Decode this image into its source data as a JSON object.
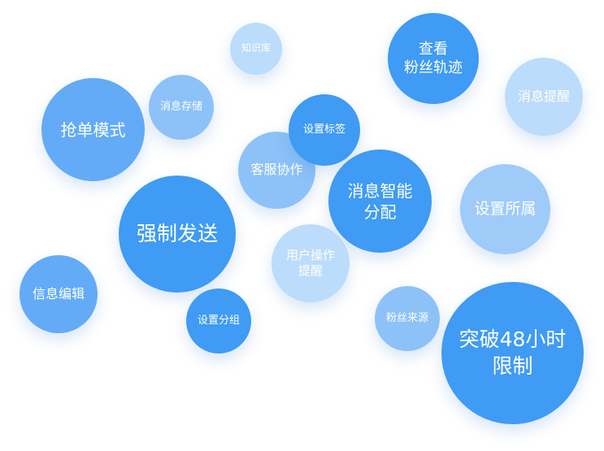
{
  "bubbles": {
    "knowledge_base": "知识库",
    "view_fan_trail": [
      "查看",
      "粉丝轨迹"
    ],
    "message_reminder": "消息提醒",
    "grab_order_mode": "抢单模式",
    "message_storage": "消息存储",
    "set_tag": "设置标签",
    "service_collab": "客服协作",
    "smart_dispatch": [
      "消息智能",
      "分配"
    ],
    "set_belonging": "设置所属",
    "force_send": "强制发送",
    "user_action_remind": [
      "用户操作",
      "提醒"
    ],
    "info_edit": "信息编辑",
    "set_group": "设置分组",
    "fan_source": "粉丝来源",
    "break_48h": [
      "突破48小时",
      "限制"
    ]
  }
}
